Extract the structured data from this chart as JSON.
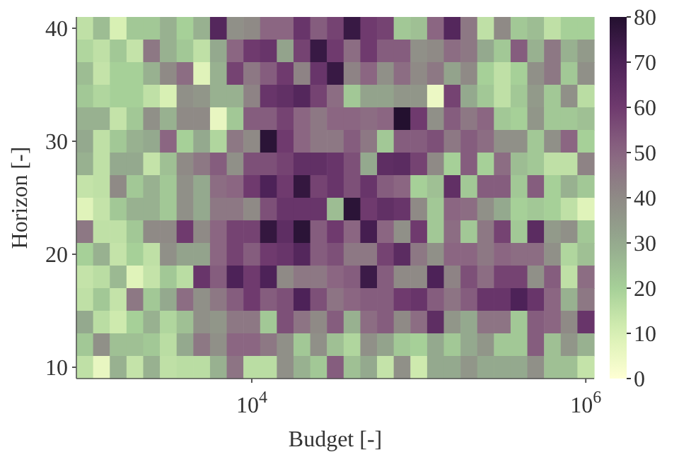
{
  "chart_data": {
    "type": "heatmap",
    "xlabel": "Budget [-]",
    "ylabel": "Horizon [-]",
    "log": "x",
    "x": [
      1000,
      1259,
      1585,
      1995,
      2512,
      3162,
      3981,
      5012,
      6310,
      7943,
      10000,
      12589,
      15849,
      19953,
      25119,
      31623,
      39811,
      50119,
      63096,
      79433,
      100000,
      125893,
      158489,
      199526,
      251189,
      316228,
      398107,
      501187,
      630957,
      794328,
      1000000
    ],
    "y": [
      40,
      38,
      36,
      34,
      32,
      30,
      28,
      26,
      24,
      22,
      20,
      18,
      16,
      14,
      12,
      10
    ],
    "xlim": [
      891,
      1122000
    ],
    "xticks": [
      {
        "value": 10000,
        "label": "10$^{4}$"
      },
      {
        "value": 1000000,
        "label": "10$^{6}$"
      }
    ],
    "ylim": [
      9,
      41
    ],
    "yticks": [
      10,
      20,
      30,
      40
    ],
    "clim": [
      0,
      80
    ],
    "cticks": [
      0,
      10,
      20,
      30,
      40,
      50,
      60,
      70,
      80
    ],
    "cells": [
      [
        15,
        25,
        10,
        22,
        22,
        28,
        20,
        28,
        68,
        38,
        40,
        50,
        50,
        62,
        52,
        58,
        75,
        60,
        58,
        22,
        24,
        50,
        68,
        45,
        15,
        40,
        22,
        25,
        15,
        20,
        20
      ],
      [
        18,
        15,
        22,
        14,
        45,
        28,
        22,
        15,
        30,
        50,
        60,
        62,
        32,
        58,
        75,
        60,
        48,
        60,
        52,
        52,
        38,
        40,
        48,
        45,
        30,
        22,
        52,
        28,
        45,
        28,
        35
      ],
      [
        25,
        14,
        20,
        20,
        28,
        40,
        48,
        8,
        28,
        58,
        45,
        52,
        60,
        42,
        62,
        75,
        42,
        50,
        38,
        48,
        40,
        45,
        32,
        40,
        20,
        15,
        20,
        38,
        45,
        22,
        38
      ],
      [
        22,
        18,
        20,
        20,
        15,
        10,
        38,
        36,
        28,
        28,
        42,
        62,
        64,
        68,
        58,
        48,
        22,
        32,
        32,
        36,
        36,
        5,
        58,
        30,
        22,
        15,
        22,
        35,
        22,
        38,
        16
      ],
      [
        28,
        28,
        14,
        22,
        38,
        28,
        40,
        40,
        6,
        22,
        52,
        52,
        58,
        50,
        45,
        50,
        50,
        48,
        50,
        80,
        60,
        38,
        52,
        45,
        50,
        22,
        20,
        36,
        22,
        22,
        24
      ],
      [
        30,
        15,
        22,
        28,
        30,
        50,
        20,
        30,
        18,
        45,
        40,
        78,
        60,
        50,
        45,
        45,
        52,
        45,
        22,
        52,
        52,
        55,
        45,
        52,
        48,
        38,
        38,
        22,
        38,
        50,
        20
      ],
      [
        28,
        15,
        30,
        30,
        14,
        24,
        40,
        45,
        52,
        38,
        55,
        55,
        58,
        64,
        64,
        62,
        55,
        30,
        65,
        66,
        58,
        40,
        20,
        52,
        20,
        48,
        25,
        22,
        15,
        15,
        42
      ],
      [
        14,
        15,
        40,
        22,
        28,
        22,
        38,
        30,
        48,
        50,
        60,
        70,
        60,
        76,
        58,
        62,
        55,
        62,
        52,
        50,
        20,
        24,
        64,
        22,
        52,
        52,
        22,
        52,
        20,
        28,
        22
      ],
      [
        8,
        14,
        22,
        28,
        28,
        22,
        38,
        30,
        45,
        45,
        40,
        55,
        62,
        62,
        62,
        25,
        78,
        60,
        64,
        62,
        40,
        22,
        50,
        48,
        38,
        30,
        20,
        22,
        20,
        15,
        8
      ],
      [
        45,
        15,
        15,
        22,
        40,
        40,
        60,
        40,
        50,
        58,
        58,
        76,
        65,
        78,
        52,
        60,
        50,
        72,
        50,
        38,
        60,
        22,
        48,
        22,
        45,
        58,
        22,
        66,
        35,
        38,
        22
      ],
      [
        20,
        28,
        14,
        20,
        15,
        38,
        32,
        32,
        50,
        58,
        52,
        60,
        62,
        68,
        52,
        55,
        45,
        45,
        58,
        66,
        45,
        38,
        50,
        50,
        45,
        50,
        48,
        48,
        38,
        18,
        24
      ],
      [
        14,
        16,
        26,
        8,
        14,
        22,
        16,
        62,
        52,
        70,
        60,
        70,
        40,
        45,
        45,
        50,
        52,
        74,
        52,
        40,
        40,
        70,
        42,
        55,
        48,
        58,
        58,
        38,
        52,
        15,
        48
      ],
      [
        15,
        22,
        14,
        45,
        22,
        30,
        48,
        38,
        45,
        52,
        60,
        52,
        55,
        70,
        55,
        46,
        50,
        52,
        52,
        60,
        62,
        52,
        46,
        52,
        62,
        62,
        70,
        62,
        50,
        28,
        45
      ],
      [
        30,
        16,
        12,
        20,
        28,
        18,
        24,
        38,
        36,
        45,
        45,
        22,
        55,
        46,
        40,
        52,
        28,
        48,
        52,
        40,
        48,
        65,
        36,
        30,
        46,
        46,
        22,
        52,
        50,
        40,
        62
      ],
      [
        22,
        38,
        24,
        24,
        22,
        16,
        30,
        45,
        38,
        50,
        50,
        45,
        38,
        22,
        38,
        24,
        18,
        38,
        32,
        22,
        20,
        30,
        22,
        30,
        36,
        22,
        22,
        52,
        24,
        36,
        28
      ],
      [
        15,
        6,
        28,
        14,
        28,
        15,
        16,
        16,
        28,
        46,
        16,
        16,
        38,
        28,
        22,
        52,
        24,
        30,
        14,
        38,
        12,
        30,
        30,
        36,
        30,
        30,
        30,
        38,
        24,
        24,
        14
      ]
    ]
  }
}
